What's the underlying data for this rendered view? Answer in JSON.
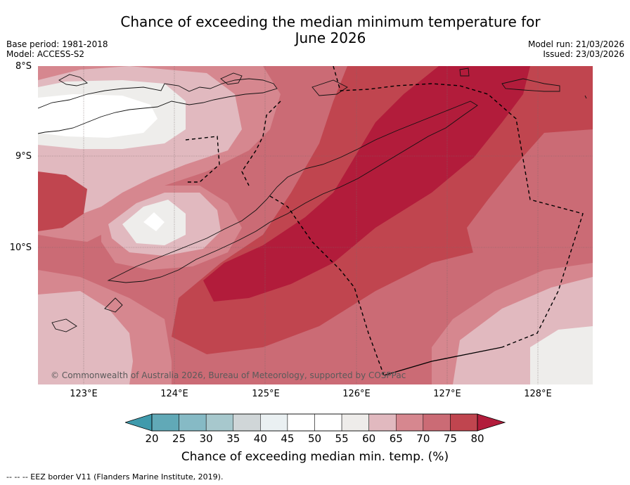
{
  "title": "Chance of exceeding the median minimum temperature for June 2026",
  "title_lines": [
    "Chance of exceeding the median minimum temperature for",
    "June 2026"
  ],
  "base_period": "Base period: 1981-2018",
  "model": "Model: ACCESS-S2",
  "model_run": "Model run: 21/03/2026",
  "issued": "Issued: 23/03/2026",
  "latitude_labels": [
    "8°S",
    "9°S",
    "10°S"
  ],
  "longitude_labels": [
    "123°E",
    "124°E",
    "125°E",
    "126°E",
    "127°E",
    "128°E"
  ],
  "copyright": "© Commonwealth of Australia 2026, Bureau of Meteorology, supported by COSPPac",
  "colorbar": {
    "label": "Chance of exceeding median min. temp. (%)",
    "ticks": [
      "20",
      "25",
      "30",
      "35",
      "40",
      "45",
      "50",
      "55",
      "60",
      "65",
      "70",
      "75",
      "80"
    ],
    "colors": [
      "#3f9aac",
      "#61a9b7",
      "#86bac5",
      "#a7c8cd",
      "#d0d6d8",
      "#eaf0f2",
      "#ffffff",
      "#ffffff",
      "#eeecea",
      "#e1b9bf",
      "#d6878f",
      "#cb6b75",
      "#c0454f",
      "#b21c3b"
    ]
  },
  "legend_note": "--  --  -- EEZ border V11 (Flanders Marine Institute, 2019).",
  "map_colors": {
    "c40_45": "#eaeceb",
    "c45_55": "#ffffff",
    "c55_60": "#eeedeb",
    "c60_65": "#e1b9bf",
    "c65_70": "#d6878f",
    "c70_75": "#cb6b75",
    "c75_80": "#c0454f",
    "c80": "#b21c3b"
  }
}
